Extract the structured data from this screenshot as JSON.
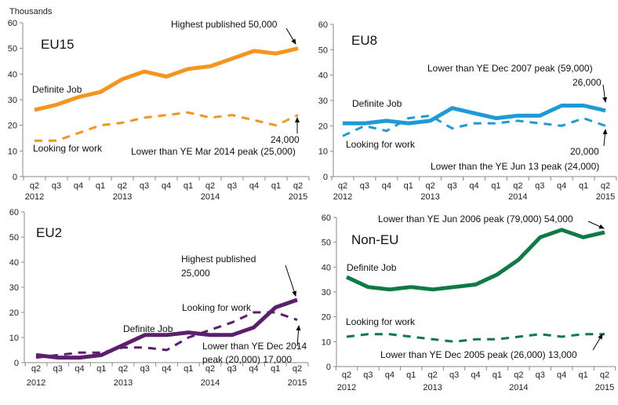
{
  "chart_data": [
    {
      "type": "line",
      "title": "EU15",
      "ylabel": "Thousands",
      "ylim": [
        0,
        60
      ],
      "yticks": [
        0,
        10,
        20,
        30,
        40,
        50,
        60
      ],
      "categories": [
        "q2",
        "q3",
        "q4",
        "q1",
        "q2",
        "q3",
        "q4",
        "q1",
        "q2",
        "q3",
        "q4",
        "q1",
        "q2"
      ],
      "year_labels": {
        "0": "2012",
        "4": "2013",
        "8": "2014",
        "12": "2015"
      },
      "color": "#F7941D",
      "series": [
        {
          "name": "Definite Job",
          "style": "solid",
          "values": [
            26,
            28,
            31,
            33,
            38,
            41,
            39,
            42,
            43,
            46,
            49,
            48,
            50
          ]
        },
        {
          "name": "Looking for work",
          "style": "dashed",
          "values": [
            14,
            14,
            17,
            20,
            21,
            23,
            24,
            25,
            23,
            24,
            22,
            20,
            24
          ]
        }
      ],
      "annotations": [
        "Highest published  50,000",
        "24,000",
        "Lower than YE Mar 2014 peak (25,000)"
      ]
    },
    {
      "type": "line",
      "title": "EU8",
      "ylim": [
        0,
        60
      ],
      "yticks": [
        0,
        10,
        20,
        30,
        40,
        50,
        60
      ],
      "categories": [
        "q2",
        "q3",
        "q4",
        "q1",
        "q2",
        "q3",
        "q4",
        "q1",
        "q2",
        "q3",
        "q4",
        "q1",
        "q2"
      ],
      "year_labels": {
        "0": "2012",
        "4": "2013",
        "8": "2014",
        "12": "2015"
      },
      "color": "#1E9BD7",
      "series": [
        {
          "name": "Definite Job",
          "style": "solid",
          "values": [
            21,
            21,
            22,
            21,
            22,
            27,
            25,
            23,
            24,
            24,
            28,
            28,
            26
          ]
        },
        {
          "name": "Looking for work",
          "style": "dashed",
          "values": [
            16,
            20,
            18,
            23,
            24,
            19,
            21,
            21,
            22,
            21,
            20,
            23,
            20
          ]
        }
      ],
      "annotations": [
        "Lower than YE Dec 2007 peak (59,000)",
        "26,000",
        "20,000",
        "Lower than the YE Jun 13 peak (24,000)"
      ]
    },
    {
      "type": "line",
      "title": "EU2",
      "ylim": [
        0,
        60
      ],
      "yticks": [
        0,
        10,
        20,
        30,
        40,
        50,
        60
      ],
      "categories": [
        "q2",
        "q3",
        "q4",
        "q1",
        "q2",
        "q3",
        "q4",
        "q1",
        "q2",
        "q3",
        "q4",
        "q1",
        "q2"
      ],
      "year_labels": {
        "0": "2012",
        "4": "2013",
        "8": "2014",
        "12": "2015"
      },
      "color": "#5C1F6E",
      "series": [
        {
          "name": "Definite Job",
          "style": "solid",
          "values": [
            3,
            2,
            2,
            3,
            7,
            11,
            11,
            12,
            11,
            11,
            14,
            22,
            25
          ]
        },
        {
          "name": "Looking for work",
          "style": "dashed",
          "values": [
            2,
            3,
            4,
            4,
            6,
            6,
            5,
            10,
            13,
            16,
            20,
            20,
            17
          ]
        }
      ],
      "annotations": [
        "Highest published",
        "25,000",
        "Lower than YE Dec 2014",
        "peak (20,000)  17,000"
      ]
    },
    {
      "type": "line",
      "title": "Non-EU",
      "ylim": [
        0,
        60
      ],
      "yticks": [
        0,
        10,
        20,
        30,
        40,
        50,
        60
      ],
      "categories": [
        "q2",
        "q3",
        "q4",
        "q1",
        "q2",
        "q3",
        "q4",
        "q1",
        "q2",
        "q3",
        "q4",
        "q1",
        "q2"
      ],
      "year_labels": {
        "0": "2012",
        "4": "2013",
        "8": "2014",
        "12": "2015"
      },
      "color": "#0E7A45",
      "series": [
        {
          "name": "Definite Job",
          "style": "solid",
          "values": [
            36,
            32,
            31,
            32,
            31,
            32,
            33,
            37,
            43,
            52,
            55,
            52,
            54
          ]
        },
        {
          "name": "Looking for work",
          "style": "dashed",
          "values": [
            12,
            13,
            13,
            12,
            11,
            10,
            11,
            11,
            12,
            13,
            12,
            13,
            13
          ]
        }
      ],
      "annotations": [
        "Lower than YE Jun 2006 peak (79,000)  54,000",
        "Lower than YE Dec 2005 peak (26,000)  13,000"
      ]
    }
  ]
}
